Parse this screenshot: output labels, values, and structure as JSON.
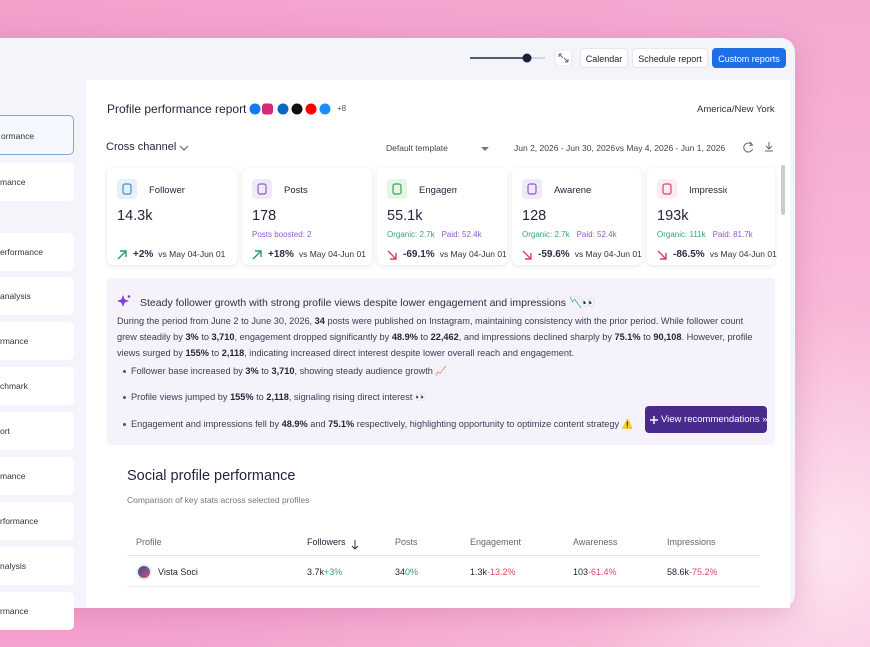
{
  "toolbar": {
    "buttons": [
      "Calendar",
      "Schedule report",
      "Custom reports"
    ]
  },
  "sidebar": {
    "items": [
      "ormance",
      "mance",
      "erformance",
      "analysis",
      "rmance",
      "chmark",
      "ort",
      "mance",
      "rformance",
      "nalysis",
      "rmance"
    ]
  },
  "report": {
    "title": "Profile performance report",
    "more_networks": "+8",
    "timezone": "America/New York",
    "channel": "Cross channel",
    "template": "Default template",
    "date_range": "Jun 2, 2026 - Jun 30, 2026",
    "compare_word": "vs",
    "compare_range": "May 4, 2026 - Jun 1, 2026"
  },
  "metrics": [
    {
      "label": "Follower",
      "value": "14.3k",
      "change": "+2%",
      "compare": "vs May 04-Jun 01"
    },
    {
      "label": "Posts",
      "value": "178",
      "note": "Posts boosted: 2",
      "change": "+18%",
      "compare": "vs May 04-Jun 01"
    },
    {
      "label": "Engagemer",
      "value": "55.1k",
      "organic": "Organic: 2.7k",
      "paid": "Paid: 52.4k",
      "change": "-69.1%",
      "compare": "vs May 04-Jun 01"
    },
    {
      "label": "Awarenes",
      "value": "128",
      "organic": "Organic: 2.7k",
      "paid": "Paid: 52.4k",
      "change": "-59.6%",
      "compare": "vs May 04-Jun 01"
    },
    {
      "label": "Impression",
      "value": "193k",
      "organic": "Organic: 111k",
      "paid": "Paid: 81.7k",
      "change": "-86.5%",
      "compare": "vs May 04-Jun 01"
    }
  ],
  "insight": {
    "title": "Steady follower growth with strong profile views despite lower engagement and impressions 📉👀",
    "paragraph": [
      "During the period from June 2 to June 30, 2026, ",
      "34",
      " posts were published on Instagram, maintaining consistency with the prior period. While follower count grew steadily by ",
      "3%",
      " to ",
      "3,710",
      ", engagement dropped significantly by ",
      "48.9%",
      " to ",
      "22,462",
      ", and impressions declined sharply by ",
      "75.1%",
      " to ",
      "90,108",
      ". However, profile views surged by ",
      "155%",
      " to ",
      "2,118",
      ", indicating increased direct interest despite lower overall reach and engagement."
    ],
    "bullets": [
      [
        "Follower base increased by ",
        "3%",
        " to ",
        "3,710",
        ", showing steady audience growth 📈"
      ],
      [
        "Profile views jumped by ",
        "155%",
        " to ",
        "2,118",
        ", signaling rising direct interest 👀"
      ],
      [
        "Engagement and impressions fell by ",
        "48.9%",
        " and ",
        "75.1%",
        " respectively, highlighting opportunity to optimize content strategy ⚠️"
      ]
    ],
    "button": "View recommendations »"
  },
  "social": {
    "title": "Social profile performance",
    "subtitle": "Comparison of key stats across selected profiles",
    "columns": [
      "Profile",
      "Followers",
      "Posts",
      "Engagement",
      "Awareness",
      "Impressions"
    ],
    "rows": [
      {
        "profile": "Vista Soci",
        "cells": [
          [
            "3.7k",
            "+3%"
          ],
          [
            "34",
            "0%"
          ],
          [
            "1.3k",
            "-13.2%"
          ],
          [
            "103",
            "-61.4%"
          ],
          [
            "58.6k",
            "-75.2%"
          ]
        ]
      }
    ]
  }
}
